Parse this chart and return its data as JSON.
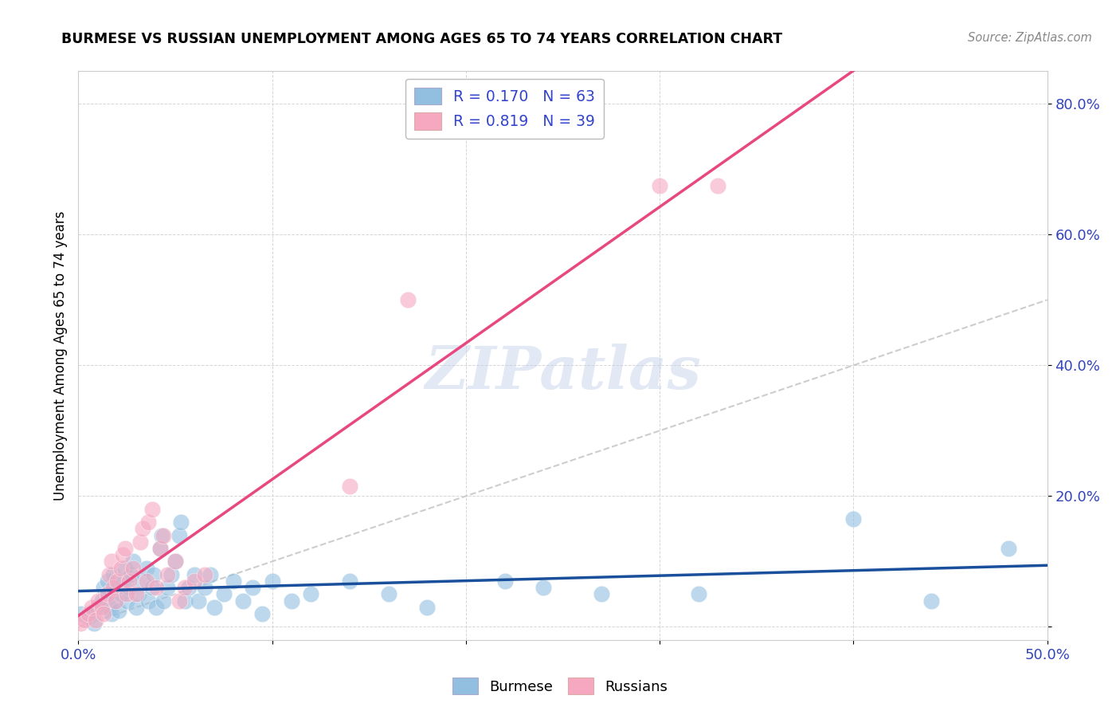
{
  "title": "BURMESE VS RUSSIAN UNEMPLOYMENT AMONG AGES 65 TO 74 YEARS CORRELATION CHART",
  "source": "Source: ZipAtlas.com",
  "ylabel": "Unemployment Among Ages 65 to 74 years",
  "xlim": [
    0.0,
    0.5
  ],
  "ylim": [
    -0.02,
    0.85
  ],
  "xticks": [
    0.0,
    0.1,
    0.2,
    0.3,
    0.4,
    0.5
  ],
  "yticks": [
    0.0,
    0.2,
    0.4,
    0.6,
    0.8
  ],
  "xticklabels": [
    "0.0%",
    "",
    "",
    "",
    "",
    "50.0%"
  ],
  "yticklabels": [
    "",
    "20.0%",
    "40.0%",
    "60.0%",
    "80.0%"
  ],
  "burmese_color": "#92BFE0",
  "russian_color": "#F5A8C0",
  "burmese_line_color": "#1A4F9C",
  "russian_line_color": "#E84880",
  "diagonal_color": "#C8C8C8",
  "watermark": "ZIPatlas",
  "burmese_points": [
    [
      0.001,
      0.02
    ],
    [
      0.005,
      0.015
    ],
    [
      0.008,
      0.025
    ],
    [
      0.008,
      0.005
    ],
    [
      0.01,
      0.03
    ],
    [
      0.012,
      0.04
    ],
    [
      0.013,
      0.06
    ],
    [
      0.015,
      0.07
    ],
    [
      0.015,
      0.05
    ],
    [
      0.016,
      0.03
    ],
    [
      0.017,
      0.02
    ],
    [
      0.018,
      0.08
    ],
    [
      0.019,
      0.04
    ],
    [
      0.02,
      0.06
    ],
    [
      0.021,
      0.025
    ],
    [
      0.022,
      0.05
    ],
    [
      0.023,
      0.07
    ],
    [
      0.024,
      0.09
    ],
    [
      0.025,
      0.04
    ],
    [
      0.026,
      0.06
    ],
    [
      0.027,
      0.08
    ],
    [
      0.028,
      0.1
    ],
    [
      0.03,
      0.03
    ],
    [
      0.031,
      0.05
    ],
    [
      0.033,
      0.07
    ],
    [
      0.035,
      0.09
    ],
    [
      0.036,
      0.04
    ],
    [
      0.038,
      0.06
    ],
    [
      0.039,
      0.08
    ],
    [
      0.04,
      0.03
    ],
    [
      0.042,
      0.12
    ],
    [
      0.043,
      0.14
    ],
    [
      0.044,
      0.04
    ],
    [
      0.046,
      0.06
    ],
    [
      0.048,
      0.08
    ],
    [
      0.05,
      0.1
    ],
    [
      0.052,
      0.14
    ],
    [
      0.053,
      0.16
    ],
    [
      0.055,
      0.04
    ],
    [
      0.057,
      0.06
    ],
    [
      0.06,
      0.08
    ],
    [
      0.062,
      0.04
    ],
    [
      0.065,
      0.06
    ],
    [
      0.068,
      0.08
    ],
    [
      0.07,
      0.03
    ],
    [
      0.075,
      0.05
    ],
    [
      0.08,
      0.07
    ],
    [
      0.085,
      0.04
    ],
    [
      0.09,
      0.06
    ],
    [
      0.095,
      0.02
    ],
    [
      0.1,
      0.07
    ],
    [
      0.11,
      0.04
    ],
    [
      0.12,
      0.05
    ],
    [
      0.14,
      0.07
    ],
    [
      0.16,
      0.05
    ],
    [
      0.18,
      0.03
    ],
    [
      0.22,
      0.07
    ],
    [
      0.24,
      0.06
    ],
    [
      0.27,
      0.05
    ],
    [
      0.32,
      0.05
    ],
    [
      0.4,
      0.165
    ],
    [
      0.44,
      0.04
    ],
    [
      0.48,
      0.12
    ]
  ],
  "russian_points": [
    [
      0.001,
      0.005
    ],
    [
      0.003,
      0.01
    ],
    [
      0.005,
      0.02
    ],
    [
      0.007,
      0.03
    ],
    [
      0.009,
      0.01
    ],
    [
      0.01,
      0.04
    ],
    [
      0.012,
      0.03
    ],
    [
      0.013,
      0.02
    ],
    [
      0.015,
      0.05
    ],
    [
      0.016,
      0.08
    ],
    [
      0.017,
      0.1
    ],
    [
      0.018,
      0.06
    ],
    [
      0.019,
      0.04
    ],
    [
      0.02,
      0.07
    ],
    [
      0.022,
      0.09
    ],
    [
      0.023,
      0.11
    ],
    [
      0.024,
      0.12
    ],
    [
      0.025,
      0.05
    ],
    [
      0.026,
      0.07
    ],
    [
      0.028,
      0.09
    ],
    [
      0.03,
      0.05
    ],
    [
      0.032,
      0.13
    ],
    [
      0.033,
      0.15
    ],
    [
      0.035,
      0.07
    ],
    [
      0.036,
      0.16
    ],
    [
      0.038,
      0.18
    ],
    [
      0.04,
      0.06
    ],
    [
      0.042,
      0.12
    ],
    [
      0.044,
      0.14
    ],
    [
      0.046,
      0.08
    ],
    [
      0.05,
      0.1
    ],
    [
      0.052,
      0.04
    ],
    [
      0.055,
      0.06
    ],
    [
      0.06,
      0.07
    ],
    [
      0.065,
      0.08
    ],
    [
      0.14,
      0.215
    ],
    [
      0.17,
      0.5
    ],
    [
      0.3,
      0.675
    ],
    [
      0.33,
      0.675
    ]
  ],
  "burmese_legend": "R = 0.170",
  "burmese_n": "N = 63",
  "russian_legend": "R = 0.819",
  "russian_n": "N = 39"
}
